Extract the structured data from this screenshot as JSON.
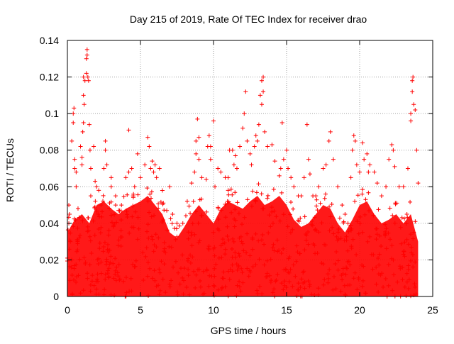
{
  "chart_data": {
    "type": "scatter",
    "title": "Day 215 of 2019, Rate Of TEC Index for receiver drao",
    "xlabel": "GPS time / hours",
    "ylabel": "ROTI / TECUs",
    "xlim": [
      0,
      25
    ],
    "ylim": [
      0,
      0.14
    ],
    "xticks": [
      0,
      5,
      10,
      15,
      20,
      25
    ],
    "yticks": [
      0,
      0.02,
      0.04,
      0.06,
      0.08,
      0.1,
      0.12,
      0.14
    ],
    "xtick_labels": [
      "0",
      "5",
      "10",
      "15",
      "20",
      "25"
    ],
    "ytick_labels": [
      "0",
      "0.02",
      "0.04",
      "0.06",
      "0.08",
      "0.1",
      "0.12",
      "0.14"
    ],
    "grid": true,
    "marker": "+",
    "color": "#ff0000",
    "series": [
      {
        "points": [
          [
            0.1,
            0.05
          ],
          [
            0.1,
            0.04
          ],
          [
            0.15,
            0.045
          ],
          [
            0.2,
            0.03
          ],
          [
            0.3,
            0.02
          ],
          [
            0.3,
            0.085
          ],
          [
            0.4,
            0.1
          ],
          [
            0.4,
            0.095
          ],
          [
            0.45,
            0.103
          ],
          [
            0.5,
            0.07
          ],
          [
            0.5,
            0.075
          ],
          [
            0.6,
            0.06
          ],
          [
            0.6,
            0.068
          ],
          [
            0.7,
            0.03
          ],
          [
            0.8,
            0.032
          ],
          [
            0.9,
            0.082
          ],
          [
            1.0,
            0.072
          ],
          [
            1.0,
            0.076
          ],
          [
            1.05,
            0.09
          ],
          [
            1.1,
            0.095
          ],
          [
            1.1,
            0.11
          ],
          [
            1.1,
            0.12
          ],
          [
            1.15,
            0.105
          ],
          [
            1.2,
            0.118
          ],
          [
            1.3,
            0.122
          ],
          [
            1.3,
            0.13
          ],
          [
            1.35,
            0.135
          ],
          [
            1.35,
            0.132
          ],
          [
            1.4,
            0.12
          ],
          [
            1.45,
            0.118
          ],
          [
            1.5,
            0.094
          ],
          [
            1.55,
            0.08
          ],
          [
            1.6,
            0.07
          ],
          [
            1.6,
            0.055
          ],
          [
            1.8,
            0.082
          ],
          [
            1.9,
            0.063
          ],
          [
            2.0,
            0.06
          ],
          [
            2.1,
            0.045
          ],
          [
            2.3,
            0.05
          ],
          [
            2.5,
            0.07
          ],
          [
            2.6,
            0.08
          ],
          [
            2.6,
            0.085
          ],
          [
            2.7,
            0.072
          ],
          [
            3.0,
            0.065
          ],
          [
            3.0,
            0.06
          ],
          [
            3.3,
            0.05
          ],
          [
            3.3,
            0.055
          ],
          [
            3.5,
            0.047
          ],
          [
            3.7,
            0.05
          ],
          [
            4.0,
            0.065
          ],
          [
            4.2,
            0.068
          ],
          [
            4.2,
            0.091
          ],
          [
            4.4,
            0.07
          ],
          [
            4.5,
            0.055
          ],
          [
            4.6,
            0.06
          ],
          [
            4.8,
            0.078
          ],
          [
            5.0,
            0.065
          ],
          [
            5.3,
            0.072
          ],
          [
            5.5,
            0.087
          ],
          [
            5.6,
            0.082
          ],
          [
            5.7,
            0.07
          ],
          [
            5.8,
            0.074
          ],
          [
            5.9,
            0.068
          ],
          [
            6.0,
            0.072
          ],
          [
            6.1,
            0.065
          ],
          [
            6.3,
            0.07
          ],
          [
            6.5,
            0.058
          ],
          [
            6.8,
            0.047
          ],
          [
            7.0,
            0.06
          ],
          [
            7.2,
            0.045
          ],
          [
            7.5,
            0.04
          ],
          [
            7.9,
            0.04
          ],
          [
            8.2,
            0.052
          ],
          [
            8.5,
            0.062
          ],
          [
            8.7,
            0.068
          ],
          [
            8.8,
            0.078
          ],
          [
            8.8,
            0.085
          ],
          [
            8.9,
            0.097
          ],
          [
            9.0,
            0.087
          ],
          [
            9.0,
            0.075
          ],
          [
            9.2,
            0.065
          ],
          [
            9.5,
            0.064
          ],
          [
            9.6,
            0.082
          ],
          [
            9.7,
            0.088
          ],
          [
            9.8,
            0.082
          ],
          [
            9.8,
            0.075
          ],
          [
            10.0,
            0.096
          ],
          [
            10.1,
            0.06
          ],
          [
            10.3,
            0.07
          ],
          [
            10.5,
            0.068
          ],
          [
            10.8,
            0.065
          ],
          [
            11.0,
            0.065
          ],
          [
            11.1,
            0.08
          ],
          [
            11.3,
            0.08
          ],
          [
            11.4,
            0.072
          ],
          [
            11.5,
            0.077
          ],
          [
            11.6,
            0.07
          ],
          [
            11.8,
            0.082
          ],
          [
            12.0,
            0.092
          ],
          [
            12.1,
            0.1
          ],
          [
            12.2,
            0.112
          ],
          [
            12.3,
            0.085
          ],
          [
            12.5,
            0.078
          ],
          [
            12.6,
            0.072
          ],
          [
            12.8,
            0.082
          ],
          [
            12.9,
            0.088
          ],
          [
            13.0,
            0.085
          ],
          [
            13.1,
            0.094
          ],
          [
            13.2,
            0.11
          ],
          [
            13.3,
            0.118
          ],
          [
            13.3,
            0.105
          ],
          [
            13.4,
            0.12
          ],
          [
            13.4,
            0.112
          ],
          [
            13.5,
            0.09
          ],
          [
            13.7,
            0.082
          ],
          [
            14.0,
            0.083
          ],
          [
            14.2,
            0.074
          ],
          [
            14.5,
            0.066
          ],
          [
            14.6,
            0.07
          ],
          [
            14.7,
            0.095
          ],
          [
            14.8,
            0.075
          ],
          [
            15.0,
            0.08
          ],
          [
            15.1,
            0.07
          ],
          [
            15.3,
            0.065
          ],
          [
            15.5,
            0.06
          ],
          [
            15.8,
            0.055
          ],
          [
            16.0,
            0.055
          ],
          [
            16.2,
            0.065
          ],
          [
            16.4,
            0.094
          ],
          [
            16.5,
            0.075
          ],
          [
            16.6,
            0.067
          ],
          [
            16.8,
            0.055
          ],
          [
            17.0,
            0.055
          ],
          [
            17.2,
            0.06
          ],
          [
            17.5,
            0.07
          ],
          [
            17.7,
            0.072
          ],
          [
            17.9,
            0.085
          ],
          [
            18.0,
            0.09
          ],
          [
            18.2,
            0.075
          ],
          [
            18.5,
            0.06
          ],
          [
            18.8,
            0.05
          ],
          [
            19.0,
            0.045
          ],
          [
            19.2,
            0.04
          ],
          [
            19.4,
            0.065
          ],
          [
            19.5,
            0.08
          ],
          [
            19.6,
            0.088
          ],
          [
            19.7,
            0.085
          ],
          [
            19.8,
            0.072
          ],
          [
            20.0,
            0.068
          ],
          [
            20.2,
            0.084
          ],
          [
            20.3,
            0.075
          ],
          [
            20.5,
            0.078
          ],
          [
            20.6,
            0.068
          ],
          [
            20.7,
            0.072
          ],
          [
            21.0,
            0.068
          ],
          [
            21.2,
            0.062
          ],
          [
            21.5,
            0.055
          ],
          [
            21.8,
            0.06
          ],
          [
            22.0,
            0.075
          ],
          [
            22.2,
            0.083
          ],
          [
            22.3,
            0.08
          ],
          [
            22.4,
            0.071
          ],
          [
            22.7,
            0.06
          ],
          [
            23.0,
            0.06
          ],
          [
            23.3,
            0.07
          ],
          [
            23.5,
            0.1
          ],
          [
            23.5,
            0.096
          ],
          [
            23.6,
            0.112
          ],
          [
            23.6,
            0.118
          ],
          [
            23.65,
            0.12
          ],
          [
            23.7,
            0.105
          ],
          [
            23.8,
            0.102
          ],
          [
            23.9,
            0.08
          ],
          [
            24.0,
            0.062
          ]
        ]
      }
    ],
    "band_upper_envelope": [
      [
        0.0,
        0.035
      ],
      [
        0.5,
        0.042
      ],
      [
        1.0,
        0.045
      ],
      [
        1.5,
        0.04
      ],
      [
        2.0,
        0.05
      ],
      [
        2.5,
        0.052
      ],
      [
        3.0,
        0.048
      ],
      [
        3.5,
        0.045
      ],
      [
        4.0,
        0.048
      ],
      [
        4.5,
        0.05
      ],
      [
        5.0,
        0.052
      ],
      [
        5.5,
        0.055
      ],
      [
        6.0,
        0.05
      ],
      [
        6.5,
        0.045
      ],
      [
        7.0,
        0.035
      ],
      [
        7.5,
        0.032
      ],
      [
        8.0,
        0.038
      ],
      [
        8.5,
        0.045
      ],
      [
        9.0,
        0.05
      ],
      [
        9.5,
        0.045
      ],
      [
        10.0,
        0.04
      ],
      [
        10.5,
        0.048
      ],
      [
        11.0,
        0.052
      ],
      [
        11.5,
        0.05
      ],
      [
        12.0,
        0.048
      ],
      [
        12.5,
        0.052
      ],
      [
        13.0,
        0.055
      ],
      [
        13.5,
        0.05
      ],
      [
        14.0,
        0.052
      ],
      [
        14.5,
        0.055
      ],
      [
        15.0,
        0.05
      ],
      [
        15.5,
        0.042
      ],
      [
        16.0,
        0.038
      ],
      [
        16.5,
        0.04
      ],
      [
        17.0,
        0.045
      ],
      [
        17.5,
        0.05
      ],
      [
        18.0,
        0.048
      ],
      [
        18.5,
        0.04
      ],
      [
        19.0,
        0.035
      ],
      [
        19.5,
        0.042
      ],
      [
        20.0,
        0.05
      ],
      [
        20.5,
        0.052
      ],
      [
        21.0,
        0.045
      ],
      [
        21.5,
        0.04
      ],
      [
        22.0,
        0.042
      ],
      [
        22.5,
        0.045
      ],
      [
        23.0,
        0.04
      ],
      [
        23.5,
        0.045
      ],
      [
        24.0,
        0.03
      ]
    ]
  }
}
